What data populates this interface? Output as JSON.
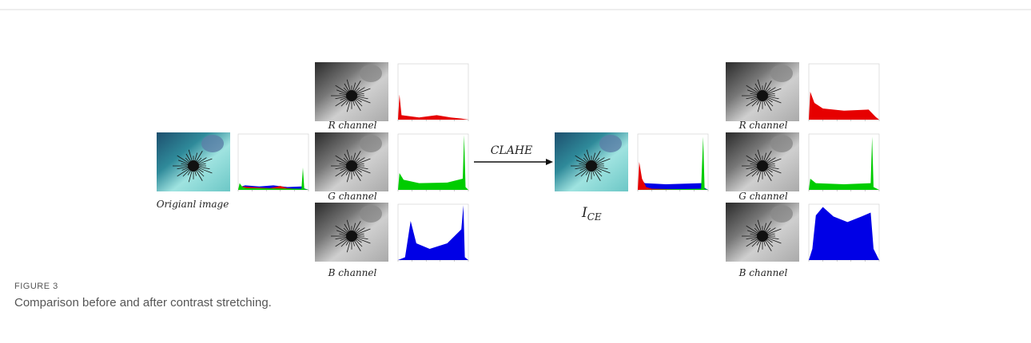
{
  "left": {
    "original_label": "Origianl image",
    "channels": [
      "R channel",
      "G channel",
      "B channel"
    ]
  },
  "arrow_label": "CLAHE",
  "right": {
    "result_label": {
      "main": "I",
      "sub": "CE"
    },
    "channels": [
      "R channel",
      "G channel",
      "B channel"
    ]
  },
  "figure": {
    "label": "FIGURE 3",
    "caption": "Comparison before and after contrast stretching."
  }
}
